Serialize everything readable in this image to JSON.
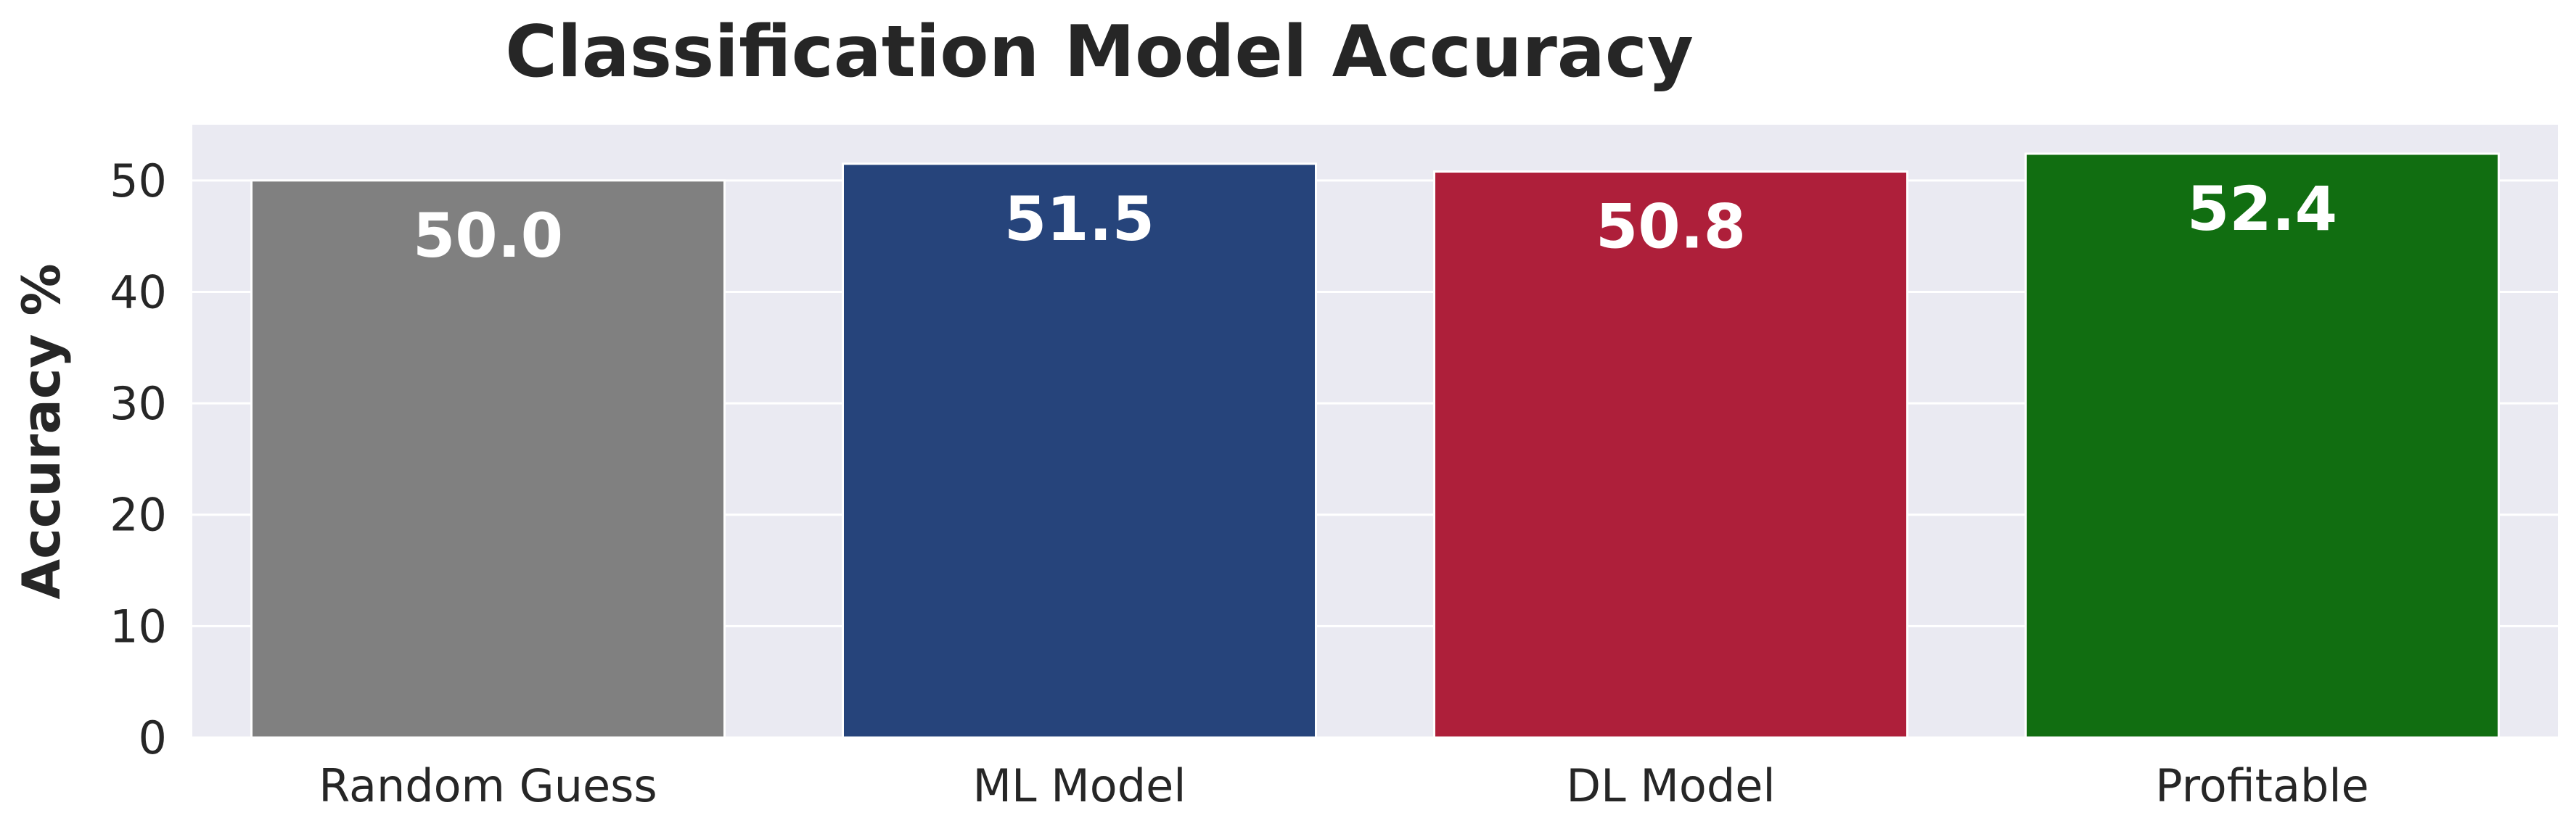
{
  "chart_data": {
    "type": "bar",
    "title": "Classification Model Accuracy",
    "xlabel": "",
    "ylabel": "Accuracy %",
    "categories": [
      "Random Guess",
      "ML Model",
      "DL Model",
      "Profitable"
    ],
    "values": [
      50.0,
      51.5,
      50.8,
      52.4
    ],
    "value_labels": [
      "50.0",
      "51.5",
      "50.8",
      "52.4"
    ],
    "colors": [
      "#808080",
      "#26447b",
      "#ae1f3a",
      "#116e11"
    ],
    "ylim": [
      0,
      55
    ],
    "yticks": [
      0,
      10,
      20,
      30,
      40,
      50
    ],
    "grid": true,
    "background": "#eaeaf2",
    "legend": "none"
  }
}
